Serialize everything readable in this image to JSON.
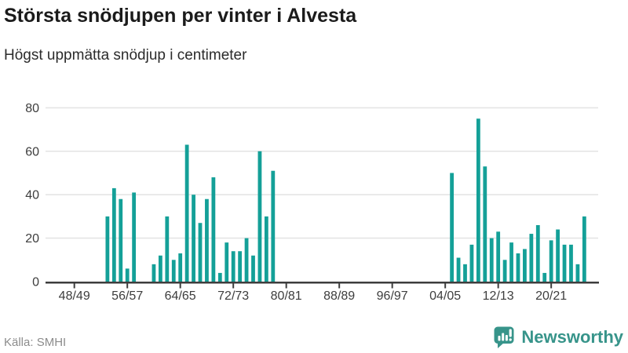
{
  "chart_data": {
    "type": "bar",
    "title": "Största snödjupen per vinter i Alvesta",
    "subtitle": "Högst uppmätta snödjup i centimeter",
    "bar_color": "#14a098",
    "grid": true,
    "ylim": [
      0,
      80
    ],
    "y_ticks": [
      0,
      20,
      40,
      60,
      80
    ],
    "x_range": [
      "48/49",
      "25/26"
    ],
    "x_tick_labels": [
      "48/49",
      "56/57",
      "64/65",
      "72/73",
      "80/81",
      "88/89",
      "96/97",
      "04/05",
      "12/13",
      "20/21"
    ],
    "bars": [
      {
        "season": "53/54",
        "value": 30
      },
      {
        "season": "54/55",
        "value": 43
      },
      {
        "season": "55/56",
        "value": 38
      },
      {
        "season": "56/57",
        "value": 6
      },
      {
        "season": "57/58",
        "value": 41
      },
      {
        "season": "60/61",
        "value": 8
      },
      {
        "season": "61/62",
        "value": 12
      },
      {
        "season": "62/63",
        "value": 30
      },
      {
        "season": "63/64",
        "value": 10
      },
      {
        "season": "64/65",
        "value": 13
      },
      {
        "season": "65/66",
        "value": 63
      },
      {
        "season": "66/67",
        "value": 40
      },
      {
        "season": "67/68",
        "value": 27
      },
      {
        "season": "68/69",
        "value": 38
      },
      {
        "season": "69/70",
        "value": 48
      },
      {
        "season": "70/71",
        "value": 4
      },
      {
        "season": "71/72",
        "value": 18
      },
      {
        "season": "72/73",
        "value": 14
      },
      {
        "season": "73/74",
        "value": 14
      },
      {
        "season": "74/75",
        "value": 20
      },
      {
        "season": "75/76",
        "value": 12
      },
      {
        "season": "76/77",
        "value": 60
      },
      {
        "season": "77/78",
        "value": 30
      },
      {
        "season": "78/79",
        "value": 51
      },
      {
        "season": "05/06",
        "value": 50
      },
      {
        "season": "06/07",
        "value": 11
      },
      {
        "season": "07/08",
        "value": 8
      },
      {
        "season": "08/09",
        "value": 17
      },
      {
        "season": "09/10",
        "value": 75
      },
      {
        "season": "10/11",
        "value": 53
      },
      {
        "season": "11/12",
        "value": 20
      },
      {
        "season": "12/13",
        "value": 23
      },
      {
        "season": "13/14",
        "value": 10
      },
      {
        "season": "14/15",
        "value": 18
      },
      {
        "season": "15/16",
        "value": 13
      },
      {
        "season": "16/17",
        "value": 15
      },
      {
        "season": "17/18",
        "value": 22
      },
      {
        "season": "18/19",
        "value": 26
      },
      {
        "season": "19/20",
        "value": 4
      },
      {
        "season": "20/21",
        "value": 19
      },
      {
        "season": "21/22",
        "value": 24
      },
      {
        "season": "22/23",
        "value": 17
      },
      {
        "season": "23/24",
        "value": 17
      },
      {
        "season": "24/25",
        "value": 8
      },
      {
        "season": "25/26",
        "value": 30
      }
    ]
  },
  "footer": {
    "source": "Källa: SMHI",
    "logo_text": "Newsworthy",
    "logo_color": "#37948a"
  }
}
